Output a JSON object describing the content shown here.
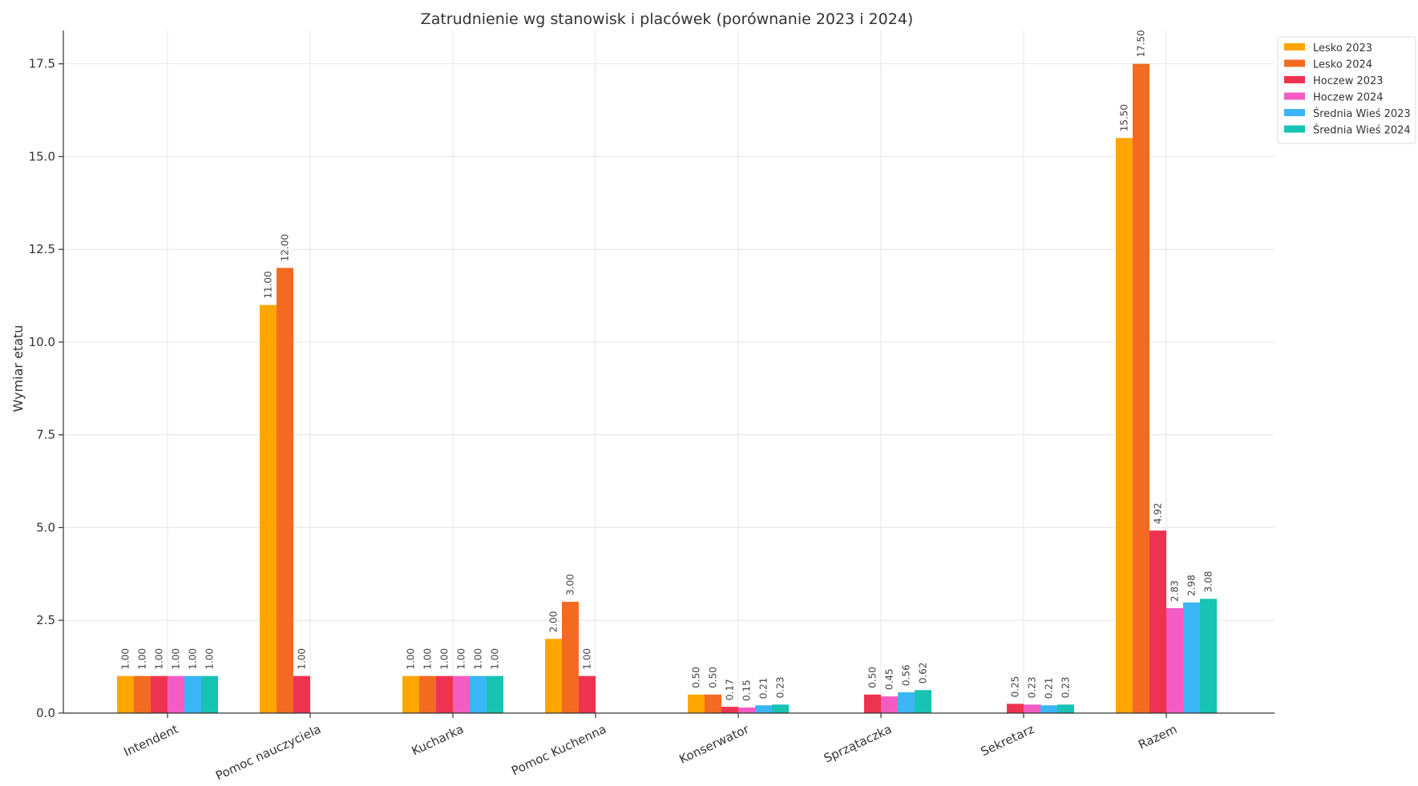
{
  "chart_data": {
    "type": "bar",
    "title": "Zatrudnienie wg stanowisk i placówek (porównanie 2023 i 2024)",
    "xlabel": "",
    "ylabel": "Wymiar etatu",
    "ylim": [
      0,
      18.4
    ],
    "yticks": [
      0.0,
      2.5,
      5.0,
      7.5,
      10.0,
      12.5,
      15.0,
      17.5
    ],
    "ytick_labels": [
      "0.0",
      "2.5",
      "5.0",
      "7.5",
      "10.0",
      "12.5",
      "15.0",
      "17.5"
    ],
    "grid": true,
    "legend_position": "top-right",
    "categories": [
      "Intendent",
      "Pomoc nauczyciela",
      "Kucharka",
      "Pomoc Kuchenna",
      "Konserwator",
      "Sprzątaczka",
      "Sekretarz",
      "Razem"
    ],
    "series": [
      {
        "name": "Lesko 2023",
        "color": "#FFA500",
        "values": [
          1.0,
          11.0,
          1.0,
          2.0,
          0.5,
          null,
          null,
          15.5
        ]
      },
      {
        "name": "Lesko 2024",
        "color": "#F26B21",
        "values": [
          1.0,
          12.0,
          1.0,
          3.0,
          0.5,
          null,
          null,
          17.5
        ]
      },
      {
        "name": "Hoczew 2023",
        "color": "#EE3351",
        "values": [
          1.0,
          1.0,
          1.0,
          1.0,
          0.17,
          0.5,
          0.25,
          4.92
        ]
      },
      {
        "name": "Hoczew 2024",
        "color": "#F45CC4",
        "values": [
          1.0,
          null,
          1.0,
          null,
          0.15,
          0.45,
          0.23,
          2.83
        ]
      },
      {
        "name": "Średnia Wieś 2023",
        "color": "#3AB5F5",
        "values": [
          1.0,
          null,
          1.0,
          null,
          0.21,
          0.56,
          0.21,
          2.98
        ]
      },
      {
        "name": "Średnia Wieś 2024",
        "color": "#17C3B2",
        "values": [
          1.0,
          null,
          1.0,
          null,
          0.23,
          0.62,
          0.23,
          3.08
        ]
      }
    ]
  }
}
